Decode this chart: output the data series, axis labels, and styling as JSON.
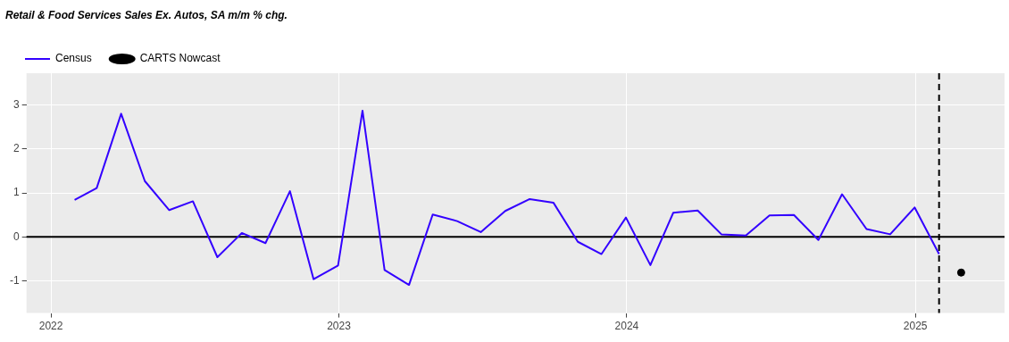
{
  "chart_data": {
    "type": "line",
    "title": "Retail & Food Services Sales Ex. Autos, SA m/m % chg.",
    "x": [
      "2022-01-31",
      "2022-02-28",
      "2022-03-31",
      "2022-04-30",
      "2022-05-31",
      "2022-06-30",
      "2022-07-31",
      "2022-08-31",
      "2022-09-30",
      "2022-10-31",
      "2022-11-30",
      "2022-12-31",
      "2023-01-31",
      "2023-02-28",
      "2023-03-31",
      "2023-04-30",
      "2023-05-31",
      "2023-06-30",
      "2023-07-31",
      "2023-08-31",
      "2023-09-30",
      "2023-10-31",
      "2023-11-30",
      "2023-12-31",
      "2024-01-31",
      "2024-02-29",
      "2024-03-31",
      "2024-04-30",
      "2024-05-31",
      "2024-06-30",
      "2024-07-31",
      "2024-08-31",
      "2024-09-30",
      "2024-10-31",
      "2024-11-30",
      "2024-12-31",
      "2025-01-31"
    ],
    "series": [
      {
        "name": "Census",
        "color": "#3300ff",
        "marker": "none",
        "values": [
          0.84,
          1.11,
          2.8,
          1.27,
          0.61,
          0.81,
          -0.46,
          0.09,
          -0.14,
          1.04,
          -0.96,
          -0.65,
          2.87,
          -0.75,
          -1.09,
          0.51,
          0.36,
          0.11,
          0.59,
          0.86,
          0.78,
          -0.11,
          -0.39,
          0.44,
          -0.64,
          0.55,
          0.6,
          0.06,
          0.03,
          0.49,
          0.5,
          -0.07,
          0.97,
          0.18,
          0.06,
          0.67,
          -0.39
        ]
      },
      {
        "name": "CARTS Nowcast",
        "type": "scatter",
        "color": "#000000",
        "marker": "circle",
        "x": [
          "2025-02-28"
        ],
        "values": [
          -0.81
        ]
      }
    ],
    "xlim": [
      "2021-12-01",
      "2025-04-24"
    ],
    "xticks": [
      {
        "value": "2022-01-01",
        "label": "2022"
      },
      {
        "value": "2023-01-01",
        "label": "2023"
      },
      {
        "value": "2024-01-01",
        "label": "2024"
      },
      {
        "value": "2025-01-01",
        "label": "2025"
      }
    ],
    "ylim": [
      -1.73,
      3.72
    ],
    "yticks": [
      -1,
      0,
      1,
      2,
      3
    ],
    "ref_lines": [
      {
        "axis": "y",
        "value": 0,
        "color": "#000000",
        "line_style": "solid"
      },
      {
        "axis": "x",
        "value": "2025-01-31",
        "color": "#000000",
        "line_style": "dashed"
      }
    ],
    "grid": true,
    "legend": "top left"
  }
}
